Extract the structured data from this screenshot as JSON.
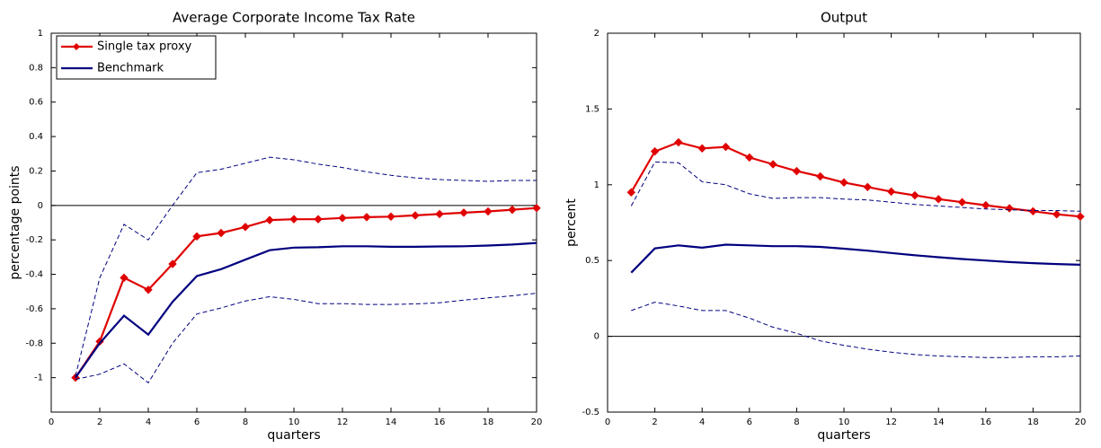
{
  "chart_data": [
    {
      "type": "line",
      "title": "Average Corporate Income Tax Rate",
      "xlabel": "quarters",
      "ylabel": "percentage points",
      "xlim": [
        0,
        20
      ],
      "xticks": [
        0,
        2,
        4,
        6,
        8,
        10,
        12,
        14,
        16,
        18,
        20
      ],
      "ylim": [
        -1.2,
        1
      ],
      "yticks": [
        -1,
        -0.8,
        -0.6,
        -0.4,
        -0.2,
        0,
        0.2,
        0.4,
        0.6,
        0.8,
        1
      ],
      "zero_line": true,
      "legend": "upper left",
      "x": [
        1,
        2,
        3,
        4,
        5,
        6,
        7,
        8,
        9,
        10,
        11,
        12,
        13,
        14,
        15,
        16,
        17,
        18,
        19,
        20
      ],
      "series": [
        {
          "name": "Single tax proxy",
          "color": "#e00000",
          "marker": "diamond",
          "values": [
            -1.0,
            -0.79,
            -0.42,
            -0.49,
            -0.34,
            -0.18,
            -0.16,
            -0.125,
            -0.085,
            -0.08,
            -0.08,
            -0.073,
            -0.068,
            -0.065,
            -0.058,
            -0.05,
            -0.042,
            -0.035,
            -0.025,
            -0.015
          ]
        },
        {
          "name": "Benchmark",
          "color": "#00007f",
          "values": [
            -1.0,
            -0.8,
            -0.64,
            -0.75,
            -0.56,
            -0.41,
            -0.37,
            -0.315,
            -0.26,
            -0.245,
            -0.243,
            -0.237,
            -0.237,
            -0.24,
            -0.24,
            -0.238,
            -0.237,
            -0.233,
            -0.227,
            -0.218
          ]
        },
        {
          "color": "#00007f",
          "dashed": true,
          "values": [
            -0.99,
            -0.42,
            -0.11,
            -0.2,
            0.0,
            0.19,
            0.21,
            0.245,
            0.28,
            0.265,
            0.24,
            0.22,
            0.195,
            0.175,
            0.16,
            0.15,
            0.145,
            0.14,
            0.145,
            0.145
          ]
        },
        {
          "color": "#00007f",
          "dashed": true,
          "values": [
            -1.01,
            -0.98,
            -0.92,
            -1.03,
            -0.8,
            -0.63,
            -0.595,
            -0.555,
            -0.53,
            -0.545,
            -0.57,
            -0.57,
            -0.575,
            -0.575,
            -0.572,
            -0.565,
            -0.55,
            -0.537,
            -0.525,
            -0.51
          ]
        }
      ]
    },
    {
      "type": "line",
      "title": "Output",
      "xlabel": "quarters",
      "ylabel": "percent",
      "xlim": [
        0,
        20
      ],
      "xticks": [
        0,
        2,
        4,
        6,
        8,
        10,
        12,
        14,
        16,
        18,
        20
      ],
      "ylim": [
        -0.5,
        2
      ],
      "yticks": [
        -0.5,
        0,
        0.5,
        1,
        1.5,
        2
      ],
      "zero_line": true,
      "x": [
        1,
        2,
        3,
        4,
        5,
        6,
        7,
        8,
        9,
        10,
        11,
        12,
        13,
        14,
        15,
        16,
        17,
        18,
        19,
        20
      ],
      "series": [
        {
          "color": "#e00000",
          "marker": "diamond",
          "values": [
            0.95,
            1.22,
            1.28,
            1.24,
            1.25,
            1.18,
            1.135,
            1.09,
            1.055,
            1.015,
            0.985,
            0.955,
            0.93,
            0.905,
            0.885,
            0.865,
            0.845,
            0.825,
            0.805,
            0.79
          ]
        },
        {
          "color": "#00007f",
          "values": [
            0.42,
            0.58,
            0.6,
            0.585,
            0.605,
            0.6,
            0.595,
            0.595,
            0.59,
            0.578,
            0.565,
            0.55,
            0.535,
            0.522,
            0.51,
            0.5,
            0.49,
            0.483,
            0.477,
            0.472
          ]
        },
        {
          "color": "#00007f",
          "dashed": true,
          "values": [
            0.86,
            1.15,
            1.145,
            1.02,
            1.0,
            0.94,
            0.91,
            0.915,
            0.915,
            0.905,
            0.9,
            0.885,
            0.87,
            0.86,
            0.85,
            0.84,
            0.835,
            0.83,
            0.83,
            0.825
          ]
        },
        {
          "color": "#00007f",
          "dashed": true,
          "values": [
            0.17,
            0.225,
            0.2,
            0.17,
            0.17,
            0.12,
            0.06,
            0.02,
            -0.03,
            -0.06,
            -0.085,
            -0.105,
            -0.12,
            -0.13,
            -0.135,
            -0.14,
            -0.14,
            -0.135,
            -0.135,
            -0.13
          ]
        }
      ]
    }
  ]
}
